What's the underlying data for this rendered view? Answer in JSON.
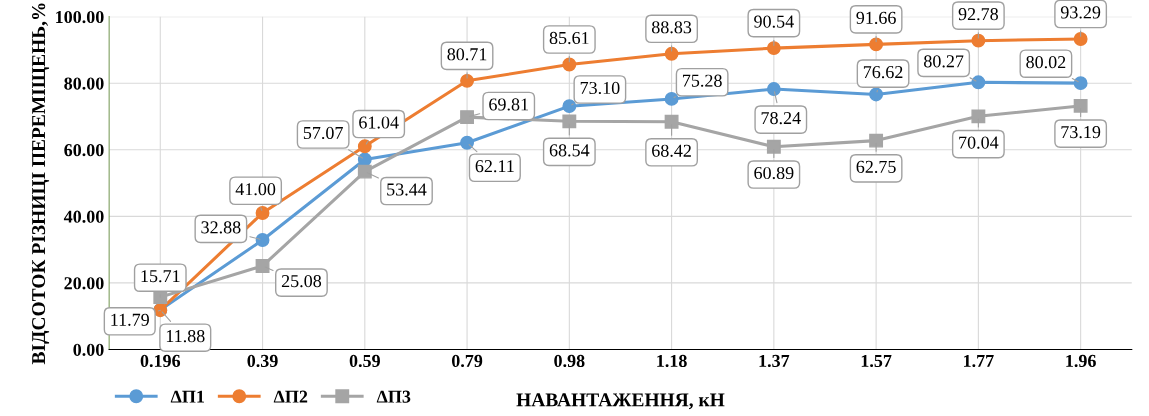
{
  "chart_data": {
    "type": "line",
    "xlabel": "НАВАНТАЖЕННЯ, кН",
    "ylabel": "ВІДСОТОК РІЗНИЦІ ПЕРЕМІЩЕНЬ,%",
    "categories": [
      "0.196",
      "0.39",
      "0.59",
      "0.79",
      "0.98",
      "1.18",
      "1.37",
      "1.57",
      "1.77",
      "1.96"
    ],
    "series": [
      {
        "name": "ΔП1",
        "color": "#5b9bd5",
        "marker": "circle",
        "values": [
          11.88,
          32.88,
          57.07,
          62.11,
          73.1,
          75.28,
          78.24,
          76.62,
          80.27,
          80.02
        ],
        "value_labels": [
          "11.88",
          "32.88",
          "57.07",
          "62.11",
          "73.10",
          "75.28",
          "78.24",
          "76.62",
          "80.27",
          "80.02"
        ]
      },
      {
        "name": "ΔП2",
        "color": "#ed7d31",
        "marker": "circle",
        "values": [
          11.79,
          41.0,
          61.04,
          80.71,
          85.61,
          88.83,
          90.54,
          91.66,
          92.78,
          93.29
        ],
        "value_labels": [
          "11.79",
          "41.00",
          "61.04",
          "80.71",
          "85.61",
          "88.83",
          "90.54",
          "91.66",
          "92.78",
          "93.29"
        ]
      },
      {
        "name": "ΔП3",
        "color": "#a5a5a5",
        "marker": "square",
        "values": [
          15.71,
          25.08,
          53.44,
          69.81,
          68.54,
          68.42,
          60.89,
          62.75,
          70.04,
          73.19
        ],
        "value_labels": [
          "15.71",
          "25.08",
          "53.44",
          "69.81",
          "68.54",
          "68.42",
          "60.89",
          "62.75",
          "70.04",
          "73.19"
        ]
      }
    ],
    "ylim": [
      0,
      100
    ],
    "yticks": [
      {
        "value": 0,
        "label": "0.00"
      },
      {
        "value": 20,
        "label": "20.00"
      },
      {
        "value": 40,
        "label": "40.00"
      },
      {
        "value": 60,
        "label": "60.00"
      },
      {
        "value": 80,
        "label": "80.00"
      },
      {
        "value": 100,
        "label": "100.00"
      }
    ],
    "grid": true,
    "legend": "bottom left"
  }
}
